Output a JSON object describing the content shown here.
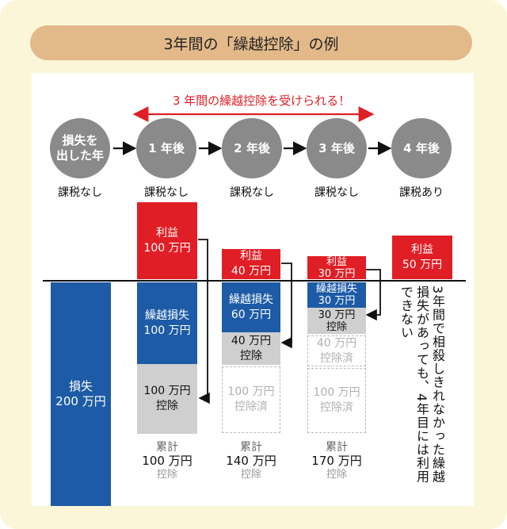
{
  "title": "3年間の「繰越控除」の例",
  "banner": "3 年間の繰越控除を受けられる！",
  "steps": [
    {
      "label": "損失を\n出した年",
      "status": "課税なし"
    },
    {
      "label": "1 年後",
      "status": "課税なし"
    },
    {
      "label": "2 年後",
      "status": "課税なし"
    },
    {
      "label": "3 年後",
      "status": "課税なし"
    },
    {
      "label": "4 年後",
      "status": "課税あり"
    }
  ],
  "bars": {
    "loss": "損失\n200 万円",
    "y1": {
      "profit": "利益\n100 万円",
      "carry": "繰越損失\n100 万円",
      "deduct": "100 万円\n控除"
    },
    "y2": {
      "profit": "利益\n40 万円",
      "carry": "繰越損失\n60 万円",
      "deduct": "40 万円\n控除",
      "done": "100 万円\n控除済"
    },
    "y3": {
      "profit": "利益\n30 万円",
      "carry": "繰越損失\n30 万円",
      "deduct": "30 万円\n控除",
      "done1": "40 万円\n控除済",
      "done2": "100 万円\n控除済"
    },
    "y4": {
      "profit": "利益\n50 万円"
    }
  },
  "totals": [
    {
      "label": "累計",
      "amount": "100 万円",
      "sub": "控除"
    },
    {
      "label": "累計",
      "amount": "140 万円",
      "sub": "控除"
    },
    {
      "label": "累計",
      "amount": "170 万円",
      "sub": "控除"
    }
  ],
  "note": "3年間で相殺しきれなかった繰越損失があっても、4年目には利用できない",
  "colors": {
    "red": "#e01e25",
    "blue": "#1d5ba6",
    "gray": "#cfcfcf",
    "circle": "#8a8a8a",
    "pill": "#e3b98a"
  }
}
